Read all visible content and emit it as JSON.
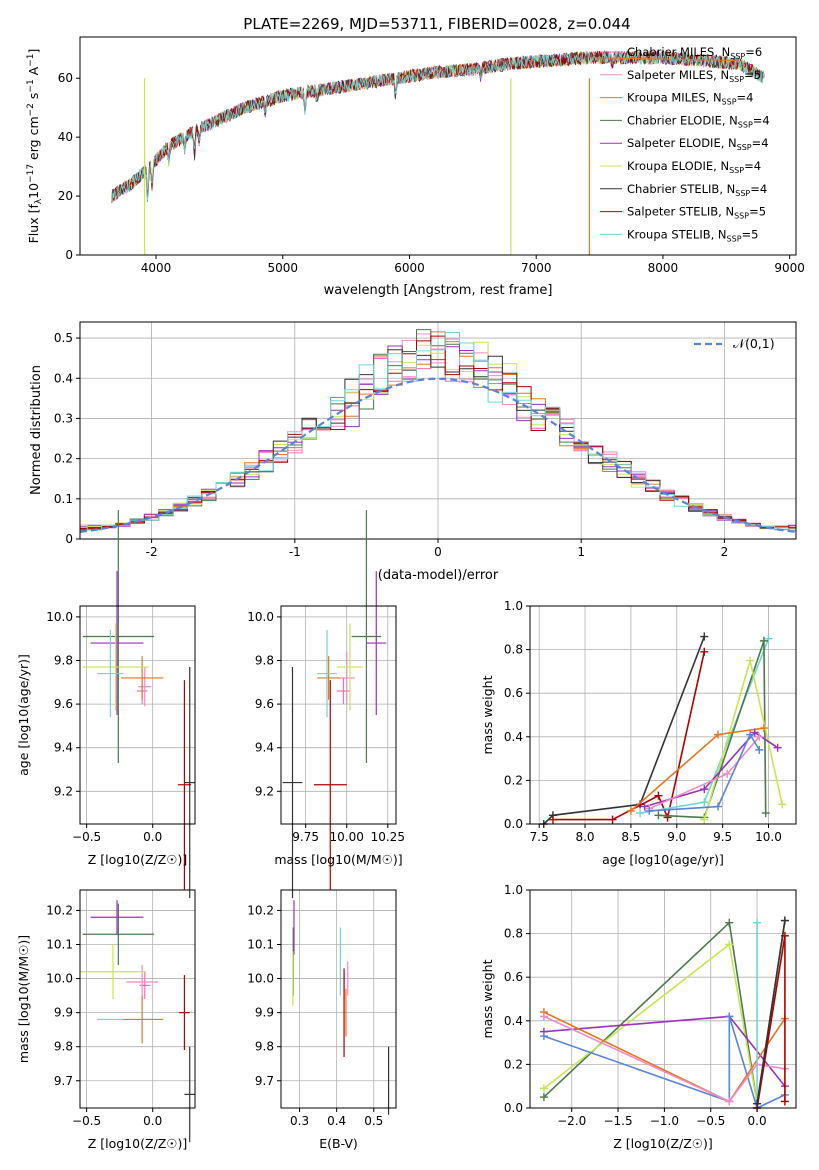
{
  "figure_title": "PLATE=2269, MJD=53711, FIBERID=0028, z=0.044",
  "colors": {
    "chabrier_miles": "#ff69b4",
    "salpeter_miles": "#f08bc7",
    "kroupa_miles": "#e8761e",
    "chabrier_elodie": "#4a7a4a",
    "salpeter_elodie": "#9b30c0",
    "kroupa_elodie": "#c8e650",
    "chabrier_stelib": "#333333",
    "salpeter_stelib": "#b00000",
    "kroupa_stelib": "#6fd6d6",
    "gauss": "#5b84d9"
  },
  "chart_data": [
    {
      "id": "spectrum",
      "type": "line",
      "xlabel": "wavelength [Angstrom, rest frame]",
      "ylabel": "Flux [f_λ 10^-17 erg cm^-2 s^-1 A^-1]",
      "xlim": [
        3400,
        9050
      ],
      "ylim": [
        0,
        74
      ],
      "xticks": [
        4000,
        5000,
        6000,
        7000,
        8000,
        9000
      ],
      "yticks": [
        0,
        20,
        40,
        60
      ],
      "continuum": {
        "x": [
          3650,
          3800,
          3950,
          4100,
          4300,
          4500,
          4700,
          5000,
          5300,
          5600,
          5900,
          6200,
          6500,
          6800,
          7100,
          7400,
          7700,
          8000,
          8300,
          8600,
          8800
        ],
        "y": [
          20,
          24,
          30,
          37,
          42,
          46,
          50,
          54,
          56,
          58,
          60,
          62,
          63,
          65,
          66,
          67,
          67,
          67,
          66,
          65,
          60
        ]
      },
      "series": [
        {
          "name": "Chabrier MILES",
          "n": "6"
        },
        {
          "name": "Salpeter MILES",
          "n": "5"
        },
        {
          "name": "Kroupa MILES",
          "n": "4"
        },
        {
          "name": "Chabrier ELODIE",
          "n": "4"
        },
        {
          "name": "Salpeter ELODIE",
          "n": "4"
        },
        {
          "name": "Kroupa ELODIE",
          "n": "4"
        },
        {
          "name": "Chabrier STELIB",
          "n": "4"
        },
        {
          "name": "Salpeter STELIB",
          "n": "5"
        },
        {
          "name": "Kroupa STELIB",
          "n": "5"
        }
      ],
      "legend": "upper right"
    },
    {
      "id": "residuals",
      "type": "bar",
      "xlabel": "(data-model)/error",
      "ylabel": "Normed distribution",
      "xlim": [
        -2.5,
        2.5
      ],
      "ylim": [
        0,
        0.54
      ],
      "xticks": [
        -2,
        -1,
        0,
        1,
        2
      ],
      "yticks": [
        0.0,
        0.1,
        0.2,
        0.3,
        0.4,
        0.5
      ],
      "reference": {
        "name": "𝒩(0,1)",
        "mean": 0,
        "sigma": 1
      },
      "grid": true
    },
    {
      "id": "age_vs_Z",
      "type": "scatter",
      "xlabel": "Z [log10(Z/Z☉)]",
      "ylabel": "age [log10(age/yr)]",
      "xlim": [
        -0.55,
        0.32
      ],
      "ylim": [
        9.05,
        10.05
      ],
      "xticks": [
        -0.5,
        0.0
      ],
      "xticklabels": [
        "−0.5",
        "0.0"
      ],
      "yticks": [
        9.2,
        9.4,
        9.6,
        9.8,
        10.0
      ],
      "yticklabels": [
        "9.2",
        "9.4",
        "9.6",
        "9.8",
        "10.0"
      ],
      "points": [
        {
          "series": "chabrier_miles",
          "x": -0.08,
          "y": 9.66,
          "ex": 0.04,
          "ey": 0.06
        },
        {
          "series": "salpeter_miles",
          "x": -0.06,
          "y": 9.68,
          "ex": 0.05,
          "ey": 0.09
        },
        {
          "series": "kroupa_miles",
          "x": -0.08,
          "y": 9.72,
          "ex": 0.16,
          "ey": 0.1
        },
        {
          "series": "chabrier_elodie",
          "x": -0.26,
          "y": 9.91,
          "ex": 0.27,
          "ey": 0.58
        },
        {
          "series": "salpeter_elodie",
          "x": -0.27,
          "y": 9.88,
          "ex": 0.2,
          "ey": 0.33
        },
        {
          "series": "kroupa_elodie",
          "x": -0.28,
          "y": 9.77,
          "ex": 0.25,
          "ey": 0.2
        },
        {
          "series": "chabrier_stelib",
          "x": 0.28,
          "y": 9.24,
          "ex": 0.04,
          "ey": 0.53
        },
        {
          "series": "salpeter_stelib",
          "x": 0.24,
          "y": 9.23,
          "ex": 0.05,
          "ey": 0.48
        },
        {
          "series": "kroupa_stelib",
          "x": -0.32,
          "y": 9.74,
          "ex": 0.1,
          "ey": 0.2
        }
      ]
    },
    {
      "id": "age_vs_mass",
      "type": "scatter",
      "xlabel": "mass [log10(M/M☉)]",
      "ylabel": "",
      "xlim": [
        9.6,
        10.3
      ],
      "ylim": [
        9.05,
        10.05
      ],
      "xticks": [
        9.75,
        10.0,
        10.25
      ],
      "xticklabels": [
        "9.75",
        "10.00",
        "10.25"
      ],
      "yticks": [
        9.2,
        9.4,
        9.6,
        9.8,
        10.0
      ],
      "yticklabels": [
        "9.2",
        "9.4",
        "9.6",
        "9.8",
        "10.0"
      ],
      "points": [
        {
          "series": "chabrier_miles",
          "x": 9.98,
          "y": 9.66,
          "ex": 0.04,
          "ey": 0.06
        },
        {
          "series": "salpeter_miles",
          "x": 10.0,
          "y": 9.72,
          "ex": 0.05,
          "ey": 0.12
        },
        {
          "series": "kroupa_miles",
          "x": 9.89,
          "y": 9.72,
          "ex": 0.07,
          "ey": 0.1
        },
        {
          "series": "chabrier_elodie",
          "x": 10.12,
          "y": 9.91,
          "ex": 0.09,
          "ey": 0.58
        },
        {
          "series": "salpeter_elodie",
          "x": 10.18,
          "y": 9.88,
          "ex": 0.06,
          "ey": 0.33
        },
        {
          "series": "kroupa_elodie",
          "x": 10.02,
          "y": 9.77,
          "ex": 0.08,
          "ey": 0.2
        },
        {
          "series": "chabrier_stelib",
          "x": 9.67,
          "y": 9.24,
          "ex": 0.06,
          "ey": 0.53
        },
        {
          "series": "salpeter_stelib",
          "x": 9.9,
          "y": 9.23,
          "ex": 0.1,
          "ey": 0.48
        },
        {
          "series": "kroupa_stelib",
          "x": 9.88,
          "y": 9.74,
          "ex": 0.06,
          "ey": 0.2
        }
      ]
    },
    {
      "id": "weight_vs_age",
      "type": "line",
      "xlabel": "age  [log10(age/yr)]",
      "ylabel": "mass weight",
      "xlim": [
        7.4,
        10.3
      ],
      "ylim": [
        0,
        1.0
      ],
      "xticks": [
        7.5,
        8.0,
        8.5,
        9.0,
        9.5,
        10.0
      ],
      "xticklabels": [
        "7.5",
        "8.0",
        "8.5",
        "9.0",
        "9.5",
        "10.0"
      ],
      "yticks": [
        0.0,
        0.2,
        0.4,
        0.6,
        0.8,
        1.0
      ],
      "yticklabels": [
        "0.0",
        "0.2",
        "0.4",
        "0.6",
        "0.8",
        "1.0"
      ],
      "series": [
        {
          "key": "chabrier_stelib",
          "x": [
            7.55,
            7.65,
            8.6,
            9.3
          ],
          "y": [
            0.0,
            0.04,
            0.09,
            0.86
          ]
        },
        {
          "key": "salpeter_stelib",
          "x": [
            7.65,
            8.3,
            8.8,
            8.9,
            9.3
          ],
          "y": [
            0.02,
            0.02,
            0.13,
            0.03,
            0.79
          ]
        },
        {
          "key": "kroupa_stelib",
          "x": [
            8.6,
            9.3,
            10.0
          ],
          "y": [
            0.05,
            0.1,
            0.85
          ]
        },
        {
          "key": "chabrier_elodie",
          "x": [
            8.8,
            9.3,
            9.95,
            9.97
          ],
          "y": [
            0.04,
            0.03,
            0.84,
            0.05
          ]
        },
        {
          "key": "kroupa_elodie",
          "x": [
            9.3,
            9.8,
            10.15
          ],
          "y": [
            0.02,
            0.75,
            0.09
          ]
        },
        {
          "key": "kroupa_miles",
          "x": [
            8.5,
            9.45,
            9.95
          ],
          "y": [
            0.06,
            0.41,
            0.44
          ]
        },
        {
          "key": "salpeter_elodie",
          "x": [
            8.65,
            9.3,
            9.85,
            10.1
          ],
          "y": [
            0.08,
            0.16,
            0.42,
            0.35
          ]
        },
        {
          "key": "salpeter_miles",
          "x": [
            8.7,
            9.55,
            9.9
          ],
          "y": [
            0.07,
            0.23,
            0.4
          ]
        },
        {
          "key": "gauss",
          "x": [
            8.7,
            9.45,
            9.8,
            9.9
          ],
          "y": [
            0.06,
            0.08,
            0.41,
            0.34
          ]
        }
      ]
    },
    {
      "id": "mass_vs_Z",
      "type": "scatter",
      "xlabel": "Z [log10(Z/Z☉)]",
      "ylabel": "mass [log10(M/M☉)]",
      "xlim": [
        -0.55,
        0.32
      ],
      "ylim": [
        9.62,
        10.26
      ],
      "xticks": [
        -0.5,
        0.0
      ],
      "xticklabels": [
        "−0.5",
        "0.0"
      ],
      "yticks": [
        9.7,
        9.8,
        9.9,
        10.0,
        10.1,
        10.2
      ],
      "yticklabels": [
        "9.7",
        "9.8",
        "9.9",
        "10.0",
        "10.1",
        "10.2"
      ],
      "points": [
        {
          "series": "chabrier_miles",
          "x": -0.06,
          "y": 9.98,
          "ex": 0.04,
          "ey": 0.04
        },
        {
          "series": "salpeter_miles",
          "x": -0.08,
          "y": 9.99,
          "ex": 0.12,
          "ey": 0.05
        },
        {
          "series": "kroupa_miles",
          "x": -0.08,
          "y": 9.88,
          "ex": 0.16,
          "ey": 0.07
        },
        {
          "series": "chabrier_elodie",
          "x": -0.26,
          "y": 10.13,
          "ex": 0.27,
          "ey": 0.09
        },
        {
          "series": "salpeter_elodie",
          "x": -0.27,
          "y": 10.18,
          "ex": 0.2,
          "ey": 0.05
        },
        {
          "series": "kroupa_elodie",
          "x": -0.3,
          "y": 10.02,
          "ex": 0.25,
          "ey": 0.08
        },
        {
          "series": "chabrier_stelib",
          "x": 0.28,
          "y": 9.66,
          "ex": 0.04,
          "ey": 0.14
        },
        {
          "series": "salpeter_stelib",
          "x": 0.24,
          "y": 9.9,
          "ex": 0.04,
          "ey": 0.11
        },
        {
          "series": "kroupa_stelib",
          "x": -0.32,
          "y": 9.88,
          "ex": 0.1,
          "ey": 0.0
        }
      ]
    },
    {
      "id": "mass_vs_ebv",
      "type": "scatter",
      "xlabel": "E(B-V)",
      "ylabel": "",
      "xlim": [
        0.25,
        0.56
      ],
      "ylim": [
        9.62,
        10.26
      ],
      "xticks": [
        0.3,
        0.4,
        0.5
      ],
      "xticklabels": [
        "0.3",
        "0.4",
        "0.5"
      ],
      "yticks": [
        9.7,
        9.8,
        9.9,
        10.0,
        10.1,
        10.2
      ],
      "yticklabels": [
        "9.7",
        "9.8",
        "9.9",
        "10.0",
        "10.1",
        "10.2"
      ],
      "points": [
        {
          "series": "chabrier_miles",
          "x": 0.42,
          "y": 9.98,
          "ex": 0,
          "ey": 0.04
        },
        {
          "series": "salpeter_miles",
          "x": 0.43,
          "y": 10.0,
          "ex": 0,
          "ey": 0.05
        },
        {
          "series": "kroupa_miles",
          "x": 0.425,
          "y": 9.9,
          "ex": 0,
          "ey": 0.07
        },
        {
          "series": "chabrier_elodie",
          "x": 0.283,
          "y": 10.05,
          "ex": 0,
          "ey": 0.1
        },
        {
          "series": "salpeter_elodie",
          "x": 0.285,
          "y": 10.15,
          "ex": 0,
          "ey": 0.08
        },
        {
          "series": "kroupa_elodie",
          "x": 0.282,
          "y": 10.0,
          "ex": 0,
          "ey": 0.08
        },
        {
          "series": "chabrier_stelib",
          "x": 0.54,
          "y": 9.7,
          "ex": 0,
          "ey": 0.1
        },
        {
          "series": "salpeter_stelib",
          "x": 0.42,
          "y": 9.9,
          "ex": 0,
          "ey": 0.13
        },
        {
          "series": "kroupa_stelib",
          "x": 0.41,
          "y": 10.05,
          "ex": 0,
          "ey": 0.1
        }
      ]
    },
    {
      "id": "weight_vs_Z",
      "type": "line",
      "xlabel": "Z [log10(Z/Z☉)]",
      "ylabel": "mass weight",
      "xlim": [
        -2.45,
        0.42
      ],
      "ylim": [
        0,
        1.0
      ],
      "xticks": [
        -2.0,
        -1.5,
        -1.0,
        -0.5,
        0.0
      ],
      "xticklabels": [
        "−2.0",
        "−1.5",
        "−1.0",
        "−0.5",
        "0.0"
      ],
      "yticks": [
        0.0,
        0.2,
        0.4,
        0.6,
        0.8,
        1.0
      ],
      "yticklabels": [
        "0.0",
        "0.2",
        "0.4",
        "0.6",
        "0.8",
        "1.0"
      ],
      "series": [
        {
          "key": "chabrier_elodie",
          "x": [
            -2.3,
            -0.3,
            0.0,
            0.3
          ],
          "y": [
            0.05,
            0.85,
            0.02,
            0.86
          ]
        },
        {
          "key": "kroupa_elodie",
          "x": [
            -2.3,
            -0.3,
            0.0
          ],
          "y": [
            0.09,
            0.75,
            0.02
          ]
        },
        {
          "key": "salpeter_elodie",
          "x": [
            -2.3,
            -0.3,
            0.3
          ],
          "y": [
            0.35,
            0.42,
            0.1
          ]
        },
        {
          "key": "gauss",
          "x": [
            -2.3,
            -0.3,
            -0.3,
            0.0,
            0.3
          ],
          "y": [
            0.33,
            0.03,
            0.42,
            0.0,
            0.06
          ]
        },
        {
          "key": "kroupa_miles",
          "x": [
            -2.3,
            -0.3,
            0.3
          ],
          "y": [
            0.44,
            0.03,
            0.41
          ]
        },
        {
          "key": "salpeter_miles",
          "x": [
            -2.3,
            -0.3,
            0.0,
            0.3
          ],
          "y": [
            0.42,
            0.03,
            0.2,
            0.18
          ]
        },
        {
          "key": "kroupa_stelib",
          "x": [
            0.0,
            0.0
          ],
          "y": [
            0.0,
            0.85
          ]
        },
        {
          "key": "salpeter_stelib",
          "x": [
            0.0,
            0.3,
            0.3
          ],
          "y": [
            0.0,
            0.79,
            0.03
          ]
        },
        {
          "key": "chabrier_stelib",
          "x": [
            0.0,
            0.3
          ],
          "y": [
            0.02,
            0.86
          ]
        }
      ]
    }
  ]
}
